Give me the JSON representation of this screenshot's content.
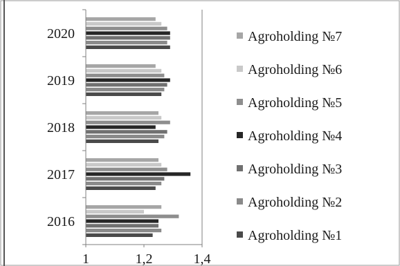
{
  "chart_data": {
    "type": "bar",
    "orientation": "horizontal",
    "categories": [
      "2016",
      "2017",
      "2018",
      "2019",
      "2020"
    ],
    "xlim": [
      1,
      1.4
    ],
    "x_ticks": [
      "1",
      "1,2",
      "1,4"
    ],
    "legend_position": "right",
    "grid": false,
    "series": [
      {
        "name": "Agroholding №1",
        "color": "#4a4a4a",
        "values": [
          1.23,
          1.24,
          1.25,
          1.26,
          1.29
        ]
      },
      {
        "name": "Agroholding №2",
        "color": "#8a8a8a",
        "values": [
          1.26,
          1.26,
          1.27,
          1.27,
          1.28
        ]
      },
      {
        "name": "Agroholding №3",
        "color": "#707070",
        "values": [
          1.25,
          1.27,
          1.28,
          1.28,
          1.29
        ]
      },
      {
        "name": "Agroholding №4",
        "color": "#262626",
        "values": [
          1.25,
          1.36,
          1.24,
          1.29,
          1.29
        ]
      },
      {
        "name": "Agroholding №5",
        "color": "#8e8e8e",
        "values": [
          1.32,
          1.28,
          1.29,
          1.27,
          1.28
        ]
      },
      {
        "name": "Agroholding №6",
        "color": "#c9c9c9",
        "values": [
          1.2,
          1.26,
          1.26,
          1.26,
          1.26
        ]
      },
      {
        "name": "Agroholding №7",
        "color": "#a6a6a6",
        "values": [
          1.26,
          1.25,
          1.25,
          1.24,
          1.24
        ]
      }
    ]
  }
}
